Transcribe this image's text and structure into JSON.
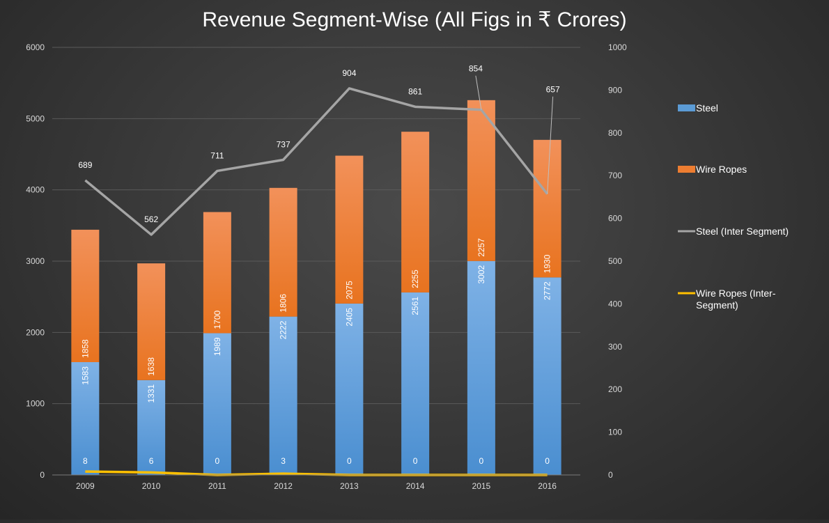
{
  "chart_data": {
    "type": "bar",
    "title": "Revenue Segment-Wise (All Figs in ₹ Crores)",
    "categories": [
      "2009",
      "2010",
      "2011",
      "2012",
      "2013",
      "2014",
      "2015",
      "2016"
    ],
    "y_left": {
      "min": 0,
      "max": 6000,
      "ticks": [
        "0",
        "1000",
        "2000",
        "3000",
        "4000",
        "5000",
        "6000"
      ]
    },
    "y_right": {
      "min": 0,
      "max": 1000,
      "ticks": [
        "0",
        "100",
        "200",
        "300",
        "400",
        "500",
        "600",
        "700",
        "800",
        "900",
        "1000"
      ]
    },
    "series": [
      {
        "name": "Steel",
        "type": "bar",
        "axis": "left",
        "color": "#5b9bd5",
        "values": [
          1583,
          1331,
          1989,
          2222,
          2405,
          2561,
          3002,
          2772
        ],
        "labels": [
          "1583",
          "1331",
          "1989",
          "2222",
          "2405",
          "2561",
          "3002",
          "2772"
        ]
      },
      {
        "name": "Wire Ropes",
        "type": "bar",
        "axis": "left",
        "color": "#ed7d31",
        "values": [
          1858,
          1638,
          1700,
          1806,
          2075,
          2255,
          2257,
          1930
        ],
        "labels": [
          "1858",
          "1638",
          "1700",
          "1806",
          "2075",
          "2255",
          "2257",
          "1930"
        ]
      },
      {
        "name": "Steel (Inter Segment)",
        "type": "line",
        "axis": "right",
        "color": "#a5a5a5",
        "values": [
          689,
          562,
          711,
          737,
          904,
          861,
          854,
          657
        ],
        "labels": [
          "689",
          "562",
          "711",
          "737",
          "904",
          "861",
          "854",
          "657"
        ]
      },
      {
        "name": "Wire Ropes (Inter-Segment)",
        "type": "line",
        "axis": "right",
        "color": "#ffc000",
        "values": [
          8,
          6,
          0,
          3,
          0,
          0,
          0,
          0
        ],
        "labels": [
          "8",
          "6",
          "0",
          "3",
          "0",
          "0",
          "0",
          "0"
        ]
      }
    ],
    "legend_position": "right",
    "grid": true
  }
}
